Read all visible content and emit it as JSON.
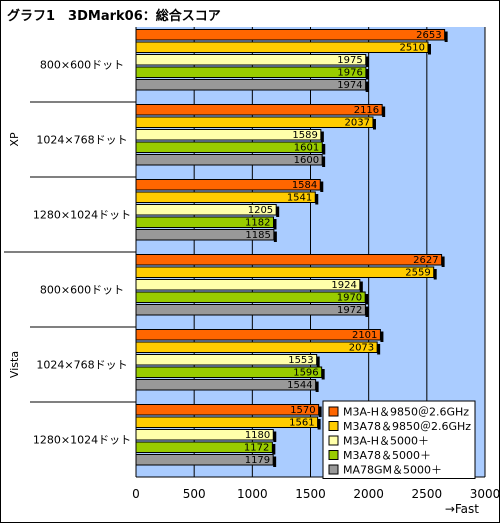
{
  "chart_data": {
    "type": "bar",
    "orientation": "horizontal",
    "title": "グラフ1　3DMark06：総合スコア",
    "groups": [
      {
        "name": "XP",
        "categories": [
          "800×600ドット",
          "1024×768ドット",
          "1280×1024ドット"
        ]
      },
      {
        "name": "Vista",
        "categories": [
          "800×600ドット",
          "1024×768ドット",
          "1280×1024ドット"
        ]
      }
    ],
    "series": [
      {
        "name": "M3A-H＆9850＠2.6GHz",
        "color": "#ff6600",
        "values": [
          2653,
          2116,
          1584,
          2627,
          2101,
          1570
        ]
      },
      {
        "name": "M3A78＆9850＠2.6GHz",
        "color": "#ffcc00",
        "values": [
          2510,
          2037,
          1541,
          2559,
          2073,
          1561
        ]
      },
      {
        "name": "M3A-H＆5000＋",
        "color": "#ffffaa",
        "values": [
          1975,
          1589,
          1205,
          1924,
          1553,
          1180
        ]
      },
      {
        "name": "M3A78＆5000＋",
        "color": "#99cc00",
        "values": [
          1976,
          1601,
          1182,
          1970,
          1596,
          1172
        ]
      },
      {
        "name": "MA78GM＆5000＋",
        "color": "#999999",
        "values": [
          1974,
          1600,
          1185,
          1972,
          1544,
          1179
        ]
      }
    ],
    "xlim": [
      0,
      3000
    ],
    "xticks": [
      0,
      500,
      1000,
      1500,
      2000,
      2500,
      3000
    ],
    "xlabel": "→Fast",
    "grid": true,
    "plot_background": "#aaccff",
    "legend_position": "bottom-right"
  }
}
